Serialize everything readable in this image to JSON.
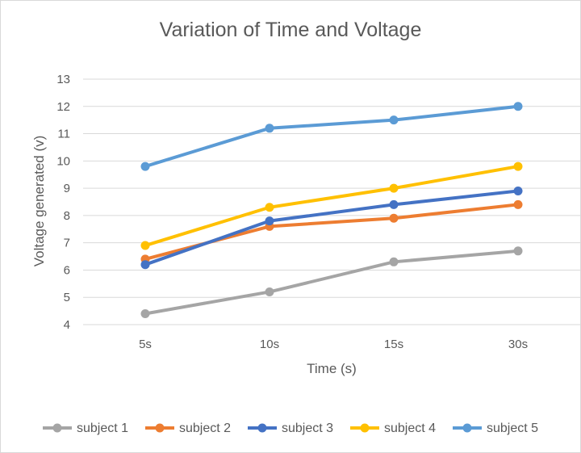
{
  "chart_data": {
    "type": "line",
    "title": "Variation of Time and Voltage",
    "xlabel": "Time (s)",
    "ylabel": "Voltage generated (v)",
    "categories": [
      "5s",
      "10s",
      "15s",
      "30s"
    ],
    "ylim": [
      4,
      13
    ],
    "yticks": [
      4,
      5,
      6,
      7,
      8,
      9,
      10,
      11,
      12,
      13
    ],
    "grid": true,
    "legend_position": "bottom",
    "series": [
      {
        "name": "subject 1",
        "color": "#a5a5a5",
        "values": [
          4.4,
          5.2,
          6.3,
          6.7
        ]
      },
      {
        "name": "subject 2",
        "color": "#ed7d31",
        "values": [
          6.4,
          7.6,
          7.9,
          8.4
        ]
      },
      {
        "name": "subject 3",
        "color": "#4472c4",
        "values": [
          6.2,
          7.8,
          8.4,
          8.9
        ]
      },
      {
        "name": "subject 4",
        "color": "#ffc000",
        "values": [
          6.9,
          8.3,
          9.0,
          9.8
        ]
      },
      {
        "name": "subject 5",
        "color": "#5b9bd5",
        "values": [
          9.8,
          11.2,
          11.5,
          12.0
        ]
      }
    ]
  }
}
